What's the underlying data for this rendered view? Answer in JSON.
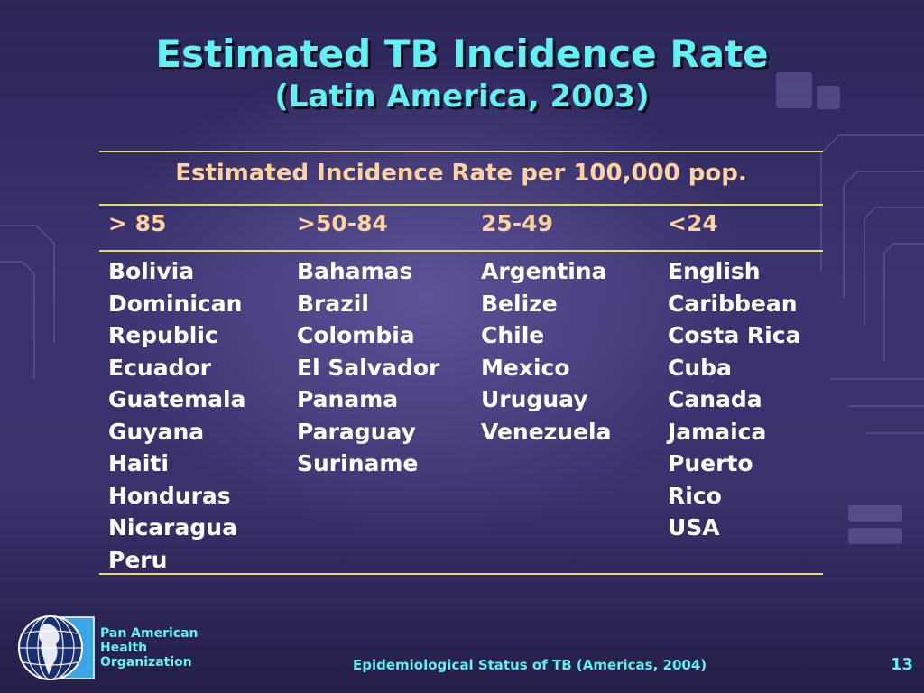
{
  "title": "Estimated TB Incidence Rate",
  "subtitle": "(Latin America, 2003)",
  "table": {
    "header": "Estimated Incidence Rate per 100,000 pop.",
    "columns": [
      {
        "label": "> 85",
        "items": [
          "Bolivia",
          "Dominican",
          "Republic",
          "Ecuador",
          "Guatemala",
          "Guyana",
          "Haiti",
          "Honduras",
          "Nicaragua",
          "Peru"
        ]
      },
      {
        "label": ">50-84",
        "items": [
          "Bahamas",
          "Brazil",
          "Colombia",
          "El Salvador",
          "Panama",
          "Paraguay",
          "Suriname"
        ]
      },
      {
        "label": "25-49",
        "items": [
          "Argentina",
          "Belize",
          "Chile",
          "Mexico",
          "Uruguay",
          "Venezuela"
        ]
      },
      {
        "label": "<24",
        "items": [
          "English",
          "Caribbean",
          "Costa Rica",
          "Cuba",
          "Canada",
          "Jamaica",
          "Puerto",
          "Rico",
          "USA"
        ]
      }
    ]
  },
  "footer": {
    "org_name": [
      "Pan American",
      "Health",
      "Organization"
    ],
    "caption": "Epidemiological Status of TB (Americas, 2004)",
    "page_number": "13"
  },
  "colors": {
    "title": "#5ff2f2",
    "table_header": "#ffd39c",
    "rules": "#e9dd6a",
    "body_text": "#ffffff",
    "background": "#3a326c"
  },
  "icons": {
    "logo": "globe-icon"
  }
}
